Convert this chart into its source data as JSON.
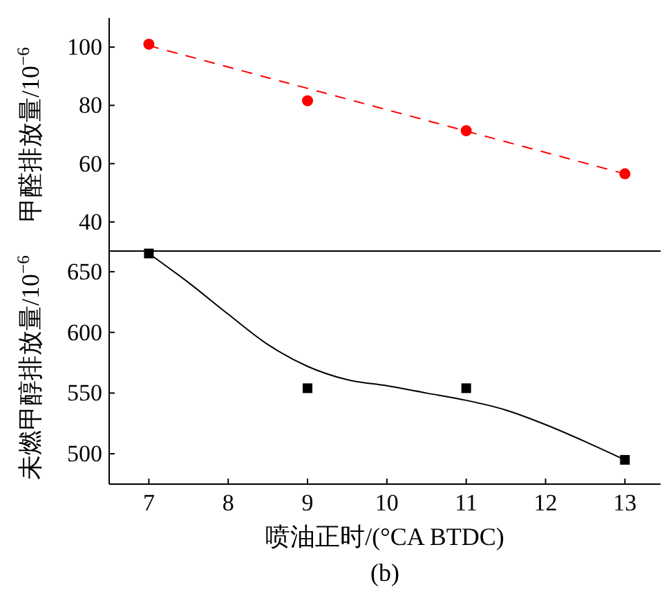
{
  "chart_data": [
    {
      "type": "scatter",
      "ylabel": "甲醛排放量/10$^{−6}$",
      "xlim": [
        6.5,
        13.45
      ],
      "ylim": [
        30,
        110
      ],
      "yticks": [
        40,
        60,
        80,
        100
      ],
      "tick_labels": "y",
      "series": [
        {
          "type": "line",
          "color": "#ff0000",
          "line_style": "dashed",
          "x": [
            7,
            13
          ],
          "values": [
            100.5,
            56.5
          ]
        },
        {
          "type": "scatter",
          "color": "#ff0000",
          "marker": "circle",
          "x": [
            7,
            9,
            11,
            13
          ],
          "values": [
            101,
            81.6,
            71.3,
            56.5
          ]
        }
      ]
    },
    {
      "type": "scatter",
      "ylabel": "未燃甲醇排放量/10$^{−6}$",
      "xlabel": "喷油正时/(°CA BTDC)",
      "xlim": [
        6.5,
        13.45
      ],
      "ylim": [
        475,
        667
      ],
      "xticks": [
        7,
        8,
        9,
        10,
        11,
        12,
        13
      ],
      "yticks": [
        500,
        550,
        600,
        650
      ],
      "annotations": [
        "(b)"
      ],
      "series": [
        {
          "type": "line",
          "color": "#000000",
          "line_style": "solid",
          "x": [
            7,
            7.5,
            8,
            8.5,
            9,
            9.5,
            10,
            10.5,
            11,
            11.5,
            12,
            12.5,
            13
          ],
          "values": [
            665,
            641,
            615,
            590,
            572,
            561,
            556,
            550,
            544,
            536,
            524,
            510,
            495
          ]
        },
        {
          "type": "scatter",
          "color": "#000000",
          "marker": "square",
          "x": [
            7,
            9,
            11,
            13
          ],
          "values": [
            665,
            554,
            554,
            495
          ]
        }
      ]
    }
  ]
}
